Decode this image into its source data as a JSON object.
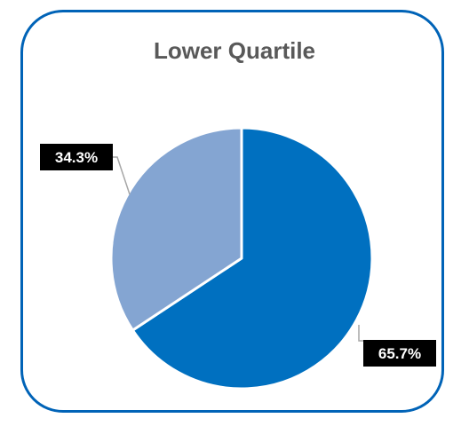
{
  "chart_data": {
    "type": "pie",
    "title": "Lower Quartile",
    "slices": [
      {
        "value": 65.7,
        "label": "65.7%",
        "color": "#0070c0"
      },
      {
        "value": 34.3,
        "label": "34.3%",
        "color": "#84a5d2"
      }
    ],
    "start_angle_deg": 0,
    "direction": "clockwise",
    "label_box_color": "#000000",
    "leader_line_color": "#a6a6a6",
    "legend": "none"
  },
  "frame": {
    "border_color": "#0063b7"
  }
}
